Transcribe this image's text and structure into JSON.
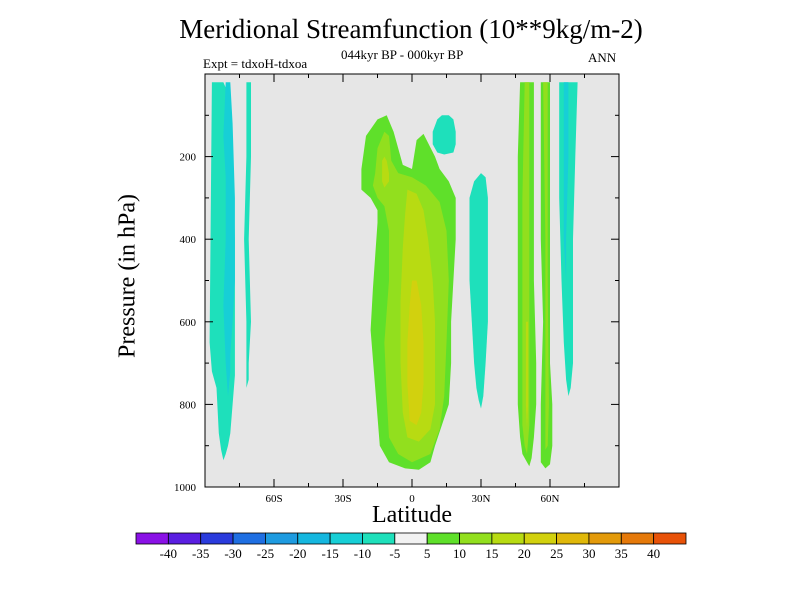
{
  "chart_data": {
    "type": "heatmap",
    "title": "Meridional Streamfunction (10**9kg/m-2)",
    "subtitle": "044kyr BP - 000kyr BP",
    "expt": "Expt = tdxoH-tdxoa",
    "season": "ANN",
    "xlabel": "Latitude",
    "ylabel": "Pressure (in hPa)",
    "xlim": [
      -90,
      90
    ],
    "ylim": [
      1000,
      0
    ],
    "x_ticks": [
      {
        "value": -60,
        "label": "60S"
      },
      {
        "value": -30,
        "label": "30S"
      },
      {
        "value": 0,
        "label": "0"
      },
      {
        "value": 30,
        "label": "30N"
      },
      {
        "value": 60,
        "label": "60N"
      }
    ],
    "y_ticks": [
      {
        "value": 200,
        "label": "200"
      },
      {
        "value": 400,
        "label": "400"
      },
      {
        "value": 600,
        "label": "600"
      },
      {
        "value": 800,
        "label": "800"
      },
      {
        "value": 1000,
        "label": "1000"
      }
    ],
    "missing_color": "#e6e6e6",
    "colorbar": {
      "labels": [
        "-40",
        "-35",
        "-30",
        "-25",
        "-20",
        "-15",
        "-10",
        "-5",
        "5",
        "10",
        "15",
        "20",
        "25",
        "30",
        "35",
        "40"
      ],
      "colors": [
        "#8a11e6",
        "#5a1ee1",
        "#2a3bdc",
        "#1f6fe2",
        "#1e9be0",
        "#15b7df",
        "#17cfd6",
        "#1ee0bb",
        "#f2f2f2",
        "#5fe02a",
        "#92df1e",
        "#b8db12",
        "#d2d10e",
        "#e0b80a",
        "#e39a0a",
        "#e5790a",
        "#e85208"
      ]
    },
    "regions": [
      {
        "label": "Antarctic negative cell",
        "level": -10,
        "outline": [
          [
            -87,
            20
          ],
          [
            -82,
            20
          ],
          [
            -79,
            60
          ],
          [
            -78,
            200
          ],
          [
            -77,
            400
          ],
          [
            -77,
            600
          ],
          [
            -77,
            730
          ],
          [
            -78,
            800
          ],
          [
            -79,
            870
          ],
          [
            -80,
            900
          ],
          [
            -81,
            920
          ],
          [
            -82,
            935
          ],
          [
            -83,
            910
          ],
          [
            -84,
            870
          ],
          [
            -85,
            760
          ],
          [
            -86,
            740
          ],
          [
            -87,
            720
          ],
          [
            -88,
            650
          ]
        ]
      },
      {
        "label": "Antarctic core",
        "level": -15,
        "outline": [
          [
            -81,
            20
          ],
          [
            -79,
            20
          ],
          [
            -78,
            120
          ],
          [
            -77,
            300
          ],
          [
            -77,
            500
          ],
          [
            -78,
            600
          ],
          [
            -79,
            680
          ],
          [
            -79,
            720
          ],
          [
            -80,
            780
          ],
          [
            -81,
            700
          ],
          [
            -82,
            560
          ],
          [
            -81,
            400
          ],
          [
            -81,
            250
          ],
          [
            -82,
            150
          ]
        ]
      },
      {
        "label": "narrow negative band",
        "level": -10,
        "outline": [
          [
            -72,
            20
          ],
          [
            -70,
            20
          ],
          [
            -70,
            200
          ],
          [
            -71,
            400
          ],
          [
            -70,
            600
          ],
          [
            -71,
            700
          ],
          [
            -71,
            740
          ],
          [
            -72,
            760
          ],
          [
            -72,
            600
          ],
          [
            -73,
            400
          ],
          [
            -72,
            200
          ]
        ]
      },
      {
        "label": "tropical cell",
        "level": 5,
        "outline": [
          [
            -22,
            230
          ],
          [
            -20,
            150
          ],
          [
            -15,
            110
          ],
          [
            -11,
            100
          ],
          [
            -8,
            140
          ],
          [
            -4,
            220
          ],
          [
            0,
            230
          ],
          [
            2,
            160
          ],
          [
            5,
            145
          ],
          [
            10,
            200
          ],
          [
            12,
            230
          ],
          [
            16,
            260
          ],
          [
            19,
            300
          ],
          [
            19,
            350
          ],
          [
            19,
            400
          ],
          [
            17,
            600
          ],
          [
            17,
            700
          ],
          [
            16,
            800
          ],
          [
            13,
            850
          ],
          [
            10,
            900
          ],
          [
            8,
            940
          ],
          [
            3,
            958
          ],
          [
            -3,
            955
          ],
          [
            -10,
            940
          ],
          [
            -14,
            900
          ],
          [
            -16,
            760
          ],
          [
            -18,
            620
          ],
          [
            -17,
            520
          ],
          [
            -16,
            440
          ],
          [
            -15,
            360
          ],
          [
            -15,
            330
          ],
          [
            -18,
            300
          ],
          [
            -22,
            280
          ]
        ]
      },
      {
        "label": "tropical cell inner",
        "level": 10,
        "outline": [
          [
            -16,
            240
          ],
          [
            -15,
            180
          ],
          [
            -12,
            140
          ],
          [
            -10,
            150
          ],
          [
            -9,
            210
          ],
          [
            -6,
            240
          ],
          [
            0,
            250
          ],
          [
            6,
            270
          ],
          [
            12,
            310
          ],
          [
            15,
            380
          ],
          [
            16,
            500
          ],
          [
            15,
            650
          ],
          [
            14,
            780
          ],
          [
            12,
            860
          ],
          [
            8,
            920
          ],
          [
            0,
            940
          ],
          [
            -6,
            920
          ],
          [
            -10,
            880
          ],
          [
            -11,
            780
          ],
          [
            -12,
            650
          ],
          [
            -10,
            500
          ],
          [
            -10,
            380
          ],
          [
            -12,
            320
          ],
          [
            -15,
            300
          ],
          [
            -17,
            270
          ]
        ]
      },
      {
        "label": "tropical cell core",
        "level": 15,
        "outline": [
          [
            -13,
            230
          ],
          [
            -13,
            210
          ],
          [
            -12,
            200
          ],
          [
            -11,
            210
          ],
          [
            -10,
            240
          ],
          [
            -10,
            260
          ],
          [
            -12,
            275
          ],
          [
            -13,
            260
          ]
        ]
      },
      {
        "label": "tropical cell core",
        "level": 15,
        "outline": [
          [
            -2,
            280
          ],
          [
            2,
            290
          ],
          [
            5,
            330
          ],
          [
            7,
            400
          ],
          [
            9,
            500
          ],
          [
            10,
            600
          ],
          [
            10,
            700
          ],
          [
            10,
            800
          ],
          [
            8,
            860
          ],
          [
            3,
            890
          ],
          [
            -2,
            880
          ],
          [
            -4,
            820
          ],
          [
            -5,
            700
          ],
          [
            -5,
            550
          ],
          [
            -4,
            420
          ],
          [
            -3,
            340
          ]
        ]
      },
      {
        "label": "tropical cell max",
        "level": 20,
        "outline": [
          [
            0,
            500
          ],
          [
            2,
            500
          ],
          [
            4,
            560
          ],
          [
            5,
            650
          ],
          [
            5,
            750
          ],
          [
            4,
            820
          ],
          [
            2,
            850
          ],
          [
            -1,
            840
          ],
          [
            -2,
            750
          ],
          [
            -2,
            650
          ],
          [
            -1,
            560
          ]
        ]
      },
      {
        "label": "upper negative blob",
        "level": -10,
        "outline": [
          [
            9,
            140
          ],
          [
            11,
            110
          ],
          [
            13,
            100
          ],
          [
            16,
            100
          ],
          [
            18,
            110
          ],
          [
            19,
            140
          ],
          [
            19,
            170
          ],
          [
            18,
            190
          ],
          [
            14,
            195
          ],
          [
            11,
            190
          ],
          [
            9,
            170
          ]
        ]
      },
      {
        "label": "subtropical negative band",
        "level": -10,
        "outline": [
          [
            25,
            300
          ],
          [
            27,
            260
          ],
          [
            30,
            240
          ],
          [
            32,
            250
          ],
          [
            33,
            300
          ],
          [
            33,
            400
          ],
          [
            33,
            600
          ],
          [
            32,
            700
          ],
          [
            31,
            780
          ],
          [
            30,
            810
          ],
          [
            29,
            790
          ],
          [
            28,
            760
          ],
          [
            27,
            700
          ],
          [
            26,
            600
          ],
          [
            25,
            500
          ],
          [
            25,
            400
          ]
        ]
      },
      {
        "label": "northern positive band",
        "level": 5,
        "outline": [
          [
            47,
            20
          ],
          [
            53,
            20
          ],
          [
            53,
            300
          ],
          [
            53,
            500
          ],
          [
            54,
            700
          ],
          [
            54,
            800
          ],
          [
            53,
            880
          ],
          [
            52,
            930
          ],
          [
            51,
            950
          ],
          [
            50,
            940
          ],
          [
            48,
            920
          ],
          [
            47,
            880
          ],
          [
            46,
            800
          ],
          [
            46,
            600
          ],
          [
            46,
            400
          ],
          [
            46,
            200
          ]
        ]
      },
      {
        "label": "northern positive band inner",
        "level": 10,
        "outline": [
          [
            49,
            20
          ],
          [
            51,
            20
          ],
          [
            51,
            300
          ],
          [
            51,
            500
          ],
          [
            51,
            700
          ],
          [
            51,
            850
          ],
          [
            50,
            920
          ],
          [
            49,
            900
          ],
          [
            48,
            850
          ],
          [
            48,
            700
          ],
          [
            48,
            500
          ],
          [
            48,
            300
          ]
        ]
      },
      {
        "label": "northern positive band inner",
        "level": 15,
        "outline": [
          [
            49.5,
            600
          ],
          [
            50.5,
            600
          ],
          [
            50.5,
            800
          ],
          [
            50,
            860
          ],
          [
            49.5,
            800
          ]
        ]
      },
      {
        "label": "northern positive band 2",
        "level": 5,
        "outline": [
          [
            56,
            20
          ],
          [
            60,
            20
          ],
          [
            60,
            300
          ],
          [
            60,
            500
          ],
          [
            60,
            700
          ],
          [
            61,
            800
          ],
          [
            61,
            900
          ],
          [
            60,
            945
          ],
          [
            58,
            955
          ],
          [
            56,
            940
          ],
          [
            56,
            800
          ],
          [
            57,
            600
          ],
          [
            56,
            400
          ],
          [
            56,
            200
          ]
        ]
      },
      {
        "label": "northern positive band 2 inner",
        "level": 10,
        "outline": [
          [
            57,
            20
          ],
          [
            59,
            20
          ],
          [
            59,
            500
          ],
          [
            59.5,
            800
          ],
          [
            59,
            900
          ],
          [
            58,
            910
          ],
          [
            58,
            700
          ],
          [
            58,
            400
          ]
        ]
      },
      {
        "label": "northern negative band",
        "level": -10,
        "outline": [
          [
            64,
            20
          ],
          [
            72,
            20
          ],
          [
            71,
            200
          ],
          [
            70,
            400
          ],
          [
            70,
            600
          ],
          [
            70,
            700
          ],
          [
            69,
            760
          ],
          [
            68,
            780
          ],
          [
            67,
            740
          ],
          [
            66,
            650
          ],
          [
            65,
            500
          ],
          [
            64,
            300
          ]
        ]
      },
      {
        "label": "northern negative band inner",
        "level": -15,
        "outline": [
          [
            66,
            20
          ],
          [
            68,
            20
          ],
          [
            68,
            200
          ],
          [
            67,
            400
          ],
          [
            67,
            500
          ],
          [
            66,
            400
          ],
          [
            66,
            200
          ]
        ]
      }
    ]
  }
}
